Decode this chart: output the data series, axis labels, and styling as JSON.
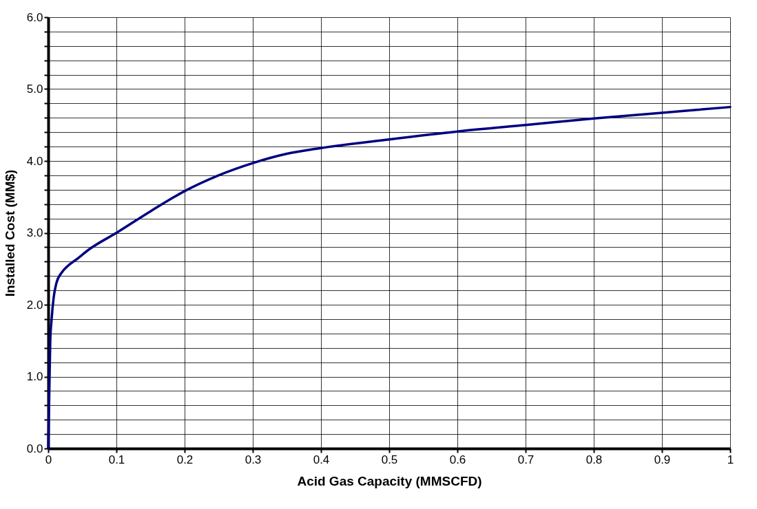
{
  "chart_data": {
    "type": "line",
    "xlabel": "Acid Gas Capacity (MMSCFD)",
    "ylabel": "Installed Cost (MM$)",
    "x": [
      0,
      0.001,
      0.002,
      0.003,
      0.005,
      0.008,
      0.012,
      0.02,
      0.03,
      0.04,
      0.06,
      0.1,
      0.15,
      0.2,
      0.25,
      0.3,
      0.35,
      0.4,
      0.5,
      0.6,
      0.7,
      0.8,
      0.9,
      1.0
    ],
    "series": [
      {
        "color": "#000080",
        "values": [
          0,
          0.5,
          1.0,
          1.5,
          1.8,
          2.1,
          2.3,
          2.45,
          2.55,
          2.62,
          2.77,
          3.0,
          3.3,
          3.58,
          3.8,
          3.97,
          4.1,
          4.18,
          4.3,
          4.41,
          4.5,
          4.59,
          4.67,
          4.75
        ]
      }
    ],
    "xlim": [
      0,
      1
    ],
    "xticks": [
      0,
      0.1,
      0.2,
      0.3,
      0.4,
      0.5,
      0.6,
      0.7,
      0.8,
      0.9,
      1
    ],
    "ylim": [
      0,
      6
    ],
    "yticks": [
      {
        "value": 0,
        "label": "0.0"
      },
      {
        "value": 0.2,
        "label": null
      },
      {
        "value": 0.4,
        "label": null
      },
      {
        "value": 0.6,
        "label": null
      },
      {
        "value": 0.8,
        "label": null
      },
      {
        "value": 1,
        "label": "1.0"
      },
      {
        "value": 1.2,
        "label": null
      },
      {
        "value": 1.4,
        "label": null
      },
      {
        "value": 1.6,
        "label": null
      },
      {
        "value": 1.8,
        "label": null
      },
      {
        "value": 2,
        "label": "2.0"
      },
      {
        "value": 2.2,
        "label": null
      },
      {
        "value": 2.4,
        "label": null
      },
      {
        "value": 2.6,
        "label": null
      },
      {
        "value": 2.8,
        "label": null
      },
      {
        "value": 3,
        "label": "3.0"
      },
      {
        "value": 3.2,
        "label": null
      },
      {
        "value": 3.4,
        "label": null
      },
      {
        "value": 3.6,
        "label": null
      },
      {
        "value": 3.8,
        "label": null
      },
      {
        "value": 4,
        "label": "4.0"
      },
      {
        "value": 4.2,
        "label": null
      },
      {
        "value": 4.4,
        "label": null
      },
      {
        "value": 4.6,
        "label": null
      },
      {
        "value": 4.8,
        "label": null
      },
      {
        "value": 5,
        "label": "5.0"
      },
      {
        "value": 5.2,
        "label": null
      },
      {
        "value": 5.4,
        "label": null
      },
      {
        "value": 5.6,
        "label": null
      },
      {
        "value": 5.8,
        "label": null
      },
      {
        "value": 6,
        "label": "6.0"
      }
    ],
    "grid": true,
    "marker": "none",
    "line_style": "solid"
  }
}
